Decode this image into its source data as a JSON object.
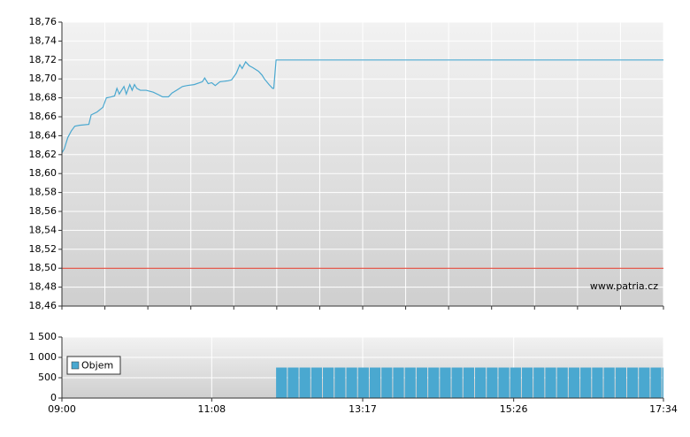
{
  "chart_data": [
    {
      "type": "line",
      "annotation": "www.patria.cz",
      "color": "#4aa8d0",
      "reference_line": {
        "value": 18.5,
        "color": "#e03020"
      },
      "xlim": [
        "09:00",
        "17:34"
      ],
      "ylim": [
        18.46,
        18.76
      ],
      "yticks": [
        {
          "value": 18.46,
          "label": "18,46"
        },
        {
          "value": 18.48,
          "label": "18,48"
        },
        {
          "value": 18.5,
          "label": "18,50"
        },
        {
          "value": 18.52,
          "label": "18,52"
        },
        {
          "value": 18.54,
          "label": "18,54"
        },
        {
          "value": 18.56,
          "label": "18,56"
        },
        {
          "value": 18.58,
          "label": "18,58"
        },
        {
          "value": 18.6,
          "label": "18,60"
        },
        {
          "value": 18.62,
          "label": "18,62"
        },
        {
          "value": 18.64,
          "label": "18,64"
        },
        {
          "value": 18.66,
          "label": "18,66"
        },
        {
          "value": 18.68,
          "label": "18,68"
        },
        {
          "value": 18.7,
          "label": "18,70"
        },
        {
          "value": 18.72,
          "label": "18,72"
        },
        {
          "value": 18.74,
          "label": "18,74"
        },
        {
          "value": 18.76,
          "label": "18,76"
        }
      ],
      "grid": true,
      "x": [
        "09:00",
        "09:02",
        "09:05",
        "09:08",
        "09:11",
        "09:15",
        "09:23",
        "09:25",
        "09:30",
        "09:35",
        "09:38",
        "09:42",
        "09:45",
        "09:47",
        "09:49",
        "09:53",
        "09:55",
        "09:58",
        "10:00",
        "10:02",
        "10:04",
        "10:07",
        "10:12",
        "10:18",
        "10:23",
        "10:26",
        "10:31",
        "10:34",
        "10:38",
        "10:43",
        "10:47",
        "10:53",
        "11:00",
        "11:02",
        "11:05",
        "11:08",
        "11:11",
        "11:15",
        "11:22",
        "11:25",
        "11:29",
        "11:32",
        "11:34",
        "11:37",
        "11:40",
        "11:43",
        "11:48",
        "11:51",
        "11:53",
        "11:57",
        "12:00",
        "12:01",
        "12:03",
        "17:34"
      ],
      "values": [
        18.622,
        18.626,
        18.638,
        18.645,
        18.65,
        18.651,
        18.652,
        18.662,
        18.665,
        18.67,
        18.68,
        18.681,
        18.682,
        18.69,
        18.684,
        18.692,
        18.684,
        18.694,
        18.688,
        18.694,
        18.69,
        18.688,
        18.688,
        18.686,
        18.683,
        18.681,
        18.681,
        18.685,
        18.688,
        18.692,
        18.693,
        18.694,
        18.697,
        18.701,
        18.695,
        18.696,
        18.693,
        18.697,
        18.698,
        18.699,
        18.706,
        18.715,
        18.711,
        18.718,
        18.714,
        18.712,
        18.708,
        18.704,
        18.7,
        18.694,
        18.69,
        18.69,
        18.72,
        18.72
      ]
    },
    {
      "type": "bar",
      "legend": "left",
      "xlim": [
        "09:00",
        "17:34"
      ],
      "xticks": [
        "09:00",
        "11:08",
        "13:17",
        "15:26",
        "17:34"
      ],
      "ylim": [
        0,
        1500
      ],
      "yticks": [
        0,
        500,
        {
          "value": 1000,
          "label": "1 000"
        },
        {
          "value": 1500,
          "label": "1 500"
        }
      ],
      "grid": true,
      "series": [
        {
          "name": "Objem",
          "color": "#4aa8d0",
          "x": [
            "12:03",
            "12:13",
            "12:23",
            "12:33",
            "12:43",
            "12:53",
            "13:03",
            "13:13",
            "13:23",
            "13:33",
            "13:43",
            "13:53",
            "14:03",
            "14:13",
            "14:23",
            "14:33",
            "14:43",
            "14:53",
            "15:03",
            "15:13",
            "15:23",
            "15:33",
            "15:43",
            "15:53",
            "16:03",
            "16:13",
            "16:23",
            "16:33",
            "16:43",
            "16:53",
            "17:03",
            "17:13",
            "17:23",
            "17:33"
          ],
          "values": [
            750,
            750,
            750,
            750,
            750,
            750,
            750,
            750,
            750,
            750,
            750,
            750,
            750,
            750,
            750,
            750,
            750,
            750,
            750,
            750,
            750,
            750,
            750,
            750,
            750,
            750,
            750,
            750,
            750,
            750,
            750,
            750,
            750,
            750
          ]
        }
      ]
    }
  ]
}
